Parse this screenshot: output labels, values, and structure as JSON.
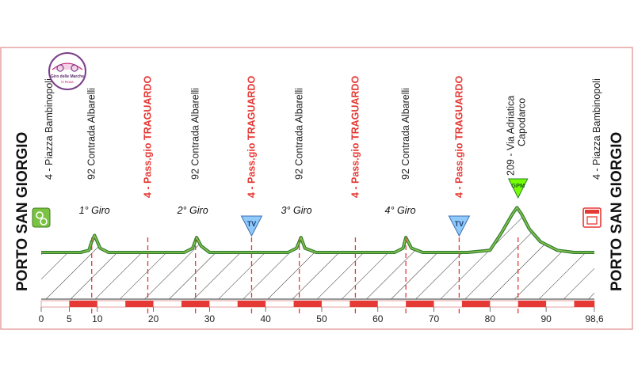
{
  "chart_data": {
    "type": "area",
    "xlim": [
      0,
      98.6
    ],
    "x_ticks": [
      "0",
      "5",
      "10",
      "20",
      "30",
      "40",
      "50",
      "60",
      "70",
      "80",
      "90",
      "98,6"
    ],
    "x_tick_values": [
      0,
      5,
      10,
      20,
      30,
      40,
      50,
      60,
      70,
      80,
      90,
      98.6
    ],
    "profile": {
      "x": [
        0,
        7,
        8.5,
        9,
        9.5,
        10.5,
        12,
        17,
        25.5,
        27,
        27.7,
        28.5,
        30,
        36,
        44,
        45.5,
        46.3,
        47,
        49,
        55,
        63,
        64.5,
        65,
        66,
        68,
        76,
        80,
        82,
        84,
        84.8,
        85.6,
        87,
        89,
        92,
        95,
        98.6
      ],
      "y": [
        4,
        4,
        5,
        9,
        12,
        6,
        4,
        4,
        4,
        6,
        11,
        7,
        4,
        4,
        4,
        6,
        11,
        6,
        4,
        4,
        4,
        6,
        11,
        6,
        4,
        4,
        5,
        13,
        22,
        25,
        22,
        15,
        9,
        5,
        4,
        4
      ]
    },
    "start_finish": {
      "left": "PORTO SAN GIORGIO",
      "right": "PORTO SAN GIORGIO"
    },
    "waypoints": [
      {
        "km": 0,
        "label": "4 - Piazza Bambinopoli",
        "color": "#222222"
      },
      {
        "km": 9,
        "label": "92 Contrada Albarelli",
        "color": "#222222"
      },
      {
        "km": 19,
        "label": "4 - Pass.gio TRAGUARDO",
        "color": "#e53935"
      },
      {
        "km": 27.5,
        "label": "92 Contrada Albarelli",
        "color": "#222222"
      },
      {
        "km": 37.5,
        "label": "4 - Pass.gio TRAGUARDO",
        "color": "#e53935"
      },
      {
        "km": 46,
        "label": "92 Contrada Albarelli",
        "color": "#222222"
      },
      {
        "km": 56,
        "label": "4 - Pass.gio TRAGUARDO",
        "color": "#e53935"
      },
      {
        "km": 65,
        "label": "92 Contrada Albarelli",
        "color": "#222222"
      },
      {
        "km": 74.5,
        "label": "4 - Pass.gio TRAGUARDO",
        "color": "#e53935"
      },
      {
        "km": 85,
        "label": "209 - Via Adriatica",
        "label2": "Capodarco",
        "color": "#222222"
      },
      {
        "km": 98.6,
        "label": "4 - Piazza Bambinopoli",
        "color": "#222222"
      }
    ],
    "laps": [
      {
        "km": 9.5,
        "label": "1° Giro"
      },
      {
        "km": 27,
        "label": "2° Giro"
      },
      {
        "km": 45.5,
        "label": "3° Giro"
      },
      {
        "km": 64,
        "label": "4° Giro"
      }
    ],
    "tv_markers": [
      {
        "km": 37.5,
        "label": "TV"
      },
      {
        "km": 74.5,
        "label": "TV"
      }
    ],
    "gpm": {
      "km": 85,
      "label": "GPM"
    },
    "logo_text": [
      "Giro delle Marche",
      "in Rosa"
    ],
    "colors": {
      "profile_line": "#2e7d32",
      "profile_line_light": "#8bc34a",
      "traguardo": "#e53935",
      "dashed": "#e53935",
      "bar_red": "#e53935",
      "tv_fill": "#90caf9",
      "gpm_fill": "#76ff03",
      "start_icon": "#7cc242",
      "finish_icon": "#e53935"
    }
  }
}
